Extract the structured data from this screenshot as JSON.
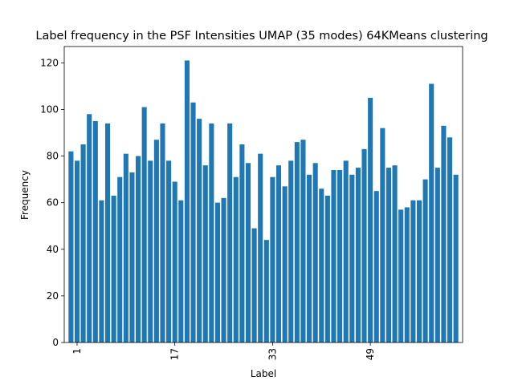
{
  "chart_data": {
    "type": "bar",
    "title": "Label frequency in the PSF Intensities UMAP (35 modes) 64KMeans clustering",
    "xlabel": "Label",
    "ylabel": "Frequency",
    "ylim": [
      0,
      127
    ],
    "yticks": [
      0,
      20,
      40,
      60,
      80,
      100,
      120
    ],
    "xtick_labels": [
      "1",
      "17",
      "33",
      "49"
    ],
    "xtick_positions": [
      1,
      17,
      33,
      49
    ],
    "grid": false,
    "bar_color": "#1f77b4",
    "x": [
      0,
      1,
      2,
      3,
      4,
      5,
      6,
      7,
      8,
      9,
      10,
      11,
      12,
      13,
      14,
      15,
      16,
      17,
      18,
      19,
      20,
      21,
      22,
      23,
      24,
      25,
      26,
      27,
      28,
      29,
      30,
      31,
      32,
      33,
      34,
      35,
      36,
      37,
      38,
      39,
      40,
      41,
      42,
      43,
      44,
      45,
      46,
      47,
      48,
      49,
      50,
      51,
      52,
      53,
      54,
      55,
      56,
      57,
      58,
      59,
      60,
      61,
      62,
      63
    ],
    "values": [
      82,
      78,
      85,
      98,
      95,
      61,
      94,
      63,
      71,
      81,
      73,
      80,
      101,
      78,
      87,
      94,
      78,
      69,
      61,
      121,
      103,
      96,
      76,
      94,
      60,
      62,
      94,
      71,
      85,
      77,
      49,
      81,
      44,
      71,
      76,
      67,
      78,
      86,
      87,
      72,
      77,
      66,
      63,
      74,
      74,
      78,
      72,
      75,
      83,
      105,
      65,
      92,
      75,
      76,
      57,
      58,
      61,
      61,
      70,
      111,
      75,
      93,
      88,
      72
    ]
  }
}
